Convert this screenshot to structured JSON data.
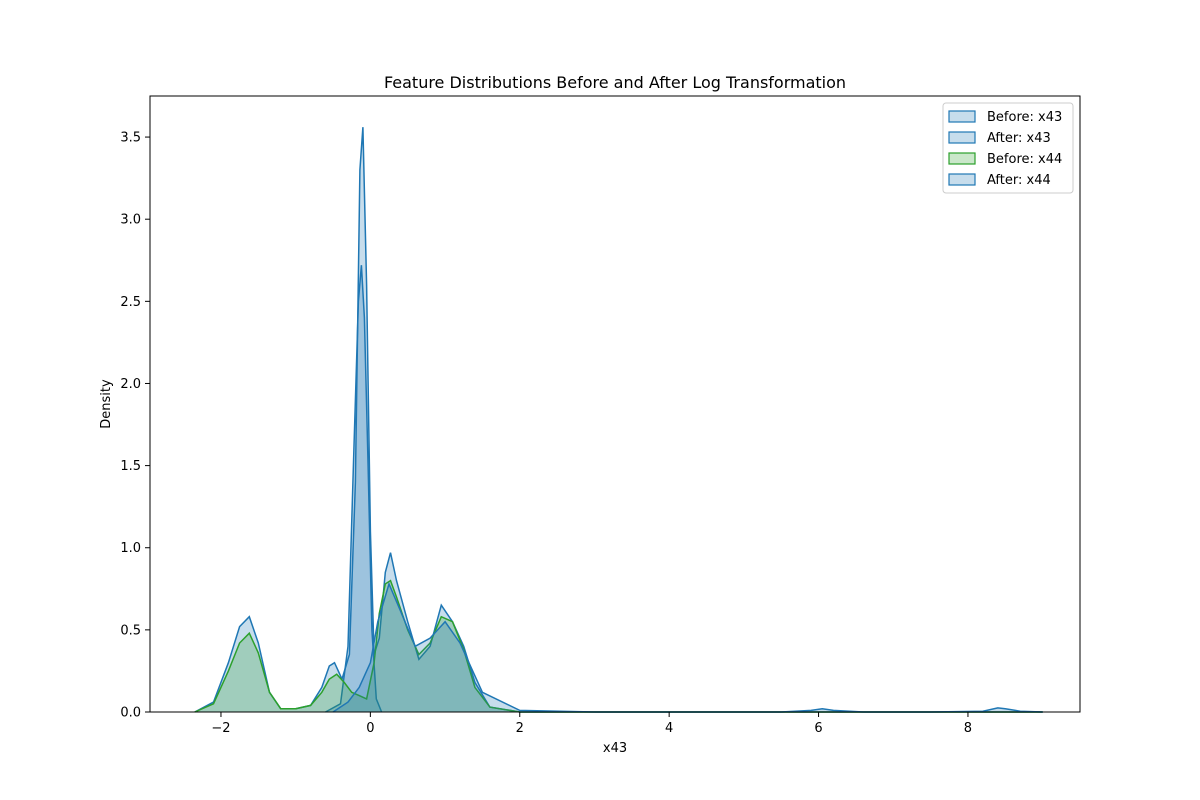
{
  "chart_data": {
    "type": "area",
    "title": "Feature Distributions Before and After Log Transformation",
    "xlabel": "x43",
    "ylabel": "Density",
    "xlim": [
      -2.95,
      9.5
    ],
    "ylim": [
      0,
      3.75
    ],
    "xticks": [
      -2,
      0,
      2,
      4,
      6,
      8
    ],
    "xtick_labels": [
      "−2",
      "0",
      "2",
      "4",
      "6",
      "8"
    ],
    "yticks": [
      0.0,
      0.5,
      1.0,
      1.5,
      2.0,
      2.5,
      3.0,
      3.5
    ],
    "ytick_labels": [
      "0.0",
      "0.5",
      "1.0",
      "1.5",
      "2.0",
      "2.5",
      "3.0",
      "3.5"
    ],
    "grid": false,
    "legend_position": "top-right",
    "series": [
      {
        "name": "Before: x43",
        "color": "#1f77b4",
        "x": [
          -2.35,
          -2.1,
          -1.9,
          -1.75,
          -1.62,
          -1.5,
          -1.35,
          -1.2,
          -1.0,
          -0.8,
          -0.65,
          -0.55,
          -0.48,
          -0.38,
          -0.28,
          -0.2,
          -0.14,
          -0.1,
          -0.05,
          0.0,
          0.05,
          0.12,
          0.2,
          0.27,
          0.35,
          0.5,
          0.65,
          0.8,
          0.95,
          1.1,
          1.25,
          1.4,
          1.6,
          2.0,
          3.0,
          5.0,
          9.0
        ],
        "y": [
          0.0,
          0.06,
          0.3,
          0.52,
          0.58,
          0.42,
          0.12,
          0.02,
          0.02,
          0.04,
          0.15,
          0.28,
          0.3,
          0.2,
          0.35,
          1.4,
          3.3,
          3.56,
          2.6,
          1.1,
          0.35,
          0.45,
          0.85,
          0.97,
          0.8,
          0.55,
          0.32,
          0.4,
          0.65,
          0.55,
          0.4,
          0.18,
          0.03,
          0.0,
          0.0,
          0.0,
          0.0
        ]
      },
      {
        "name": "After: x43",
        "color": "#1f77b4",
        "x": [
          -0.6,
          -0.4,
          -0.3,
          -0.22,
          -0.16,
          -0.12,
          -0.08,
          -0.03,
          0.02,
          0.08,
          0.15
        ],
        "y": [
          0.0,
          0.05,
          0.4,
          1.6,
          2.5,
          2.72,
          2.4,
          1.5,
          0.5,
          0.08,
          0.0
        ]
      },
      {
        "name": "Before: x44",
        "color": "#2ca02c",
        "x": [
          -2.35,
          -2.1,
          -1.9,
          -1.75,
          -1.62,
          -1.5,
          -1.35,
          -1.2,
          -1.0,
          -0.8,
          -0.65,
          -0.55,
          -0.45,
          -0.35,
          -0.25,
          -0.15,
          -0.05,
          0.05,
          0.12,
          0.2,
          0.27,
          0.35,
          0.5,
          0.65,
          0.8,
          0.95,
          1.1,
          1.25,
          1.4,
          1.6,
          2.0,
          3.0,
          9.0
        ],
        "y": [
          0.0,
          0.05,
          0.25,
          0.42,
          0.48,
          0.36,
          0.12,
          0.02,
          0.02,
          0.04,
          0.12,
          0.2,
          0.23,
          0.18,
          0.12,
          0.1,
          0.08,
          0.3,
          0.6,
          0.78,
          0.8,
          0.7,
          0.5,
          0.35,
          0.42,
          0.58,
          0.55,
          0.38,
          0.15,
          0.03,
          0.0,
          0.0,
          0.0
        ]
      },
      {
        "name": "After: x44",
        "color": "#1f77b4",
        "x": [
          -0.5,
          -0.3,
          -0.15,
          0.0,
          0.1,
          0.25,
          0.4,
          0.6,
          0.8,
          1.0,
          1.2,
          1.5,
          2.0,
          3.0,
          4.5,
          5.5,
          5.9,
          6.05,
          6.2,
          6.6,
          7.5,
          8.2,
          8.4,
          8.5,
          8.7,
          9.0
        ],
        "y": [
          0.0,
          0.06,
          0.15,
          0.3,
          0.55,
          0.78,
          0.62,
          0.4,
          0.45,
          0.55,
          0.42,
          0.12,
          0.01,
          0.0,
          0.0,
          0.0,
          0.01,
          0.02,
          0.01,
          0.0,
          0.0,
          0.005,
          0.025,
          0.02,
          0.005,
          0.0
        ]
      }
    ]
  }
}
